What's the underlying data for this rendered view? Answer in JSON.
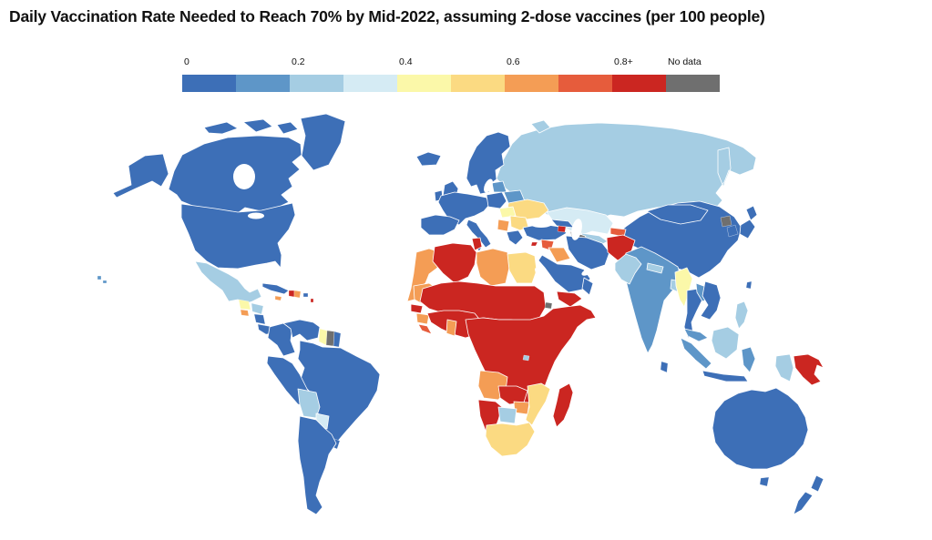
{
  "title": "Daily Vaccination Rate Needed to Reach 70% by Mid-2022, assuming 2-dose vaccines (per 100 people)",
  "legend": {
    "ticks": [
      {
        "label": "0",
        "cell": 0
      },
      {
        "label": "0.2",
        "cell": 2
      },
      {
        "label": "0.4",
        "cell": 4
      },
      {
        "label": "0.6",
        "cell": 6
      },
      {
        "label": "0.8+",
        "cell": 8
      },
      {
        "label": "No data",
        "cell": 9
      }
    ],
    "bins": [
      "0.0",
      "0.1",
      "0.2",
      "0.3",
      "0.4",
      "0.5",
      "0.6",
      "0.7",
      "0.8+",
      "no-data"
    ],
    "palette": {
      "0.0": "#3d6fb7",
      "0.1": "#5e96c8",
      "0.2": "#a5cde3",
      "0.3": "#d5ebf4",
      "0.4": "#fbf8a9",
      "0.5": "#fbda82",
      "0.6": "#f49d55",
      "0.7": "#e65c3c",
      "0.8+": "#cb2621",
      "no-data": "#6f6f6f"
    }
  },
  "map": {
    "ocean_color": "#ffffff",
    "border_color": "#ffffff",
    "regions": [
      {
        "id": "greenland",
        "name": "Greenland",
        "category": "0.0"
      },
      {
        "id": "canada",
        "name": "Canada",
        "category": "0.0"
      },
      {
        "id": "alaska",
        "name": "United States (Alaska)",
        "category": "0.0"
      },
      {
        "id": "usa",
        "name": "United States",
        "category": "0.0"
      },
      {
        "id": "hawaii",
        "name": "United States (Hawaii)",
        "category": "0.1"
      },
      {
        "id": "mexico",
        "name": "Mexico",
        "category": "0.2"
      },
      {
        "id": "guatemala",
        "name": "Guatemala",
        "category": "0.4"
      },
      {
        "id": "el-salvador",
        "name": "El Salvador",
        "category": "0.6"
      },
      {
        "id": "honduras",
        "name": "Honduras",
        "category": "0.2"
      },
      {
        "id": "nicaragua",
        "name": "Nicaragua",
        "category": "0.0"
      },
      {
        "id": "costa-rica-panama",
        "name": "Costa Rica & Panama",
        "category": "0.0"
      },
      {
        "id": "cuba",
        "name": "Cuba",
        "category": "0.0"
      },
      {
        "id": "jamaica",
        "name": "Jamaica",
        "category": "0.6"
      },
      {
        "id": "haiti",
        "name": "Haiti",
        "category": "0.8+"
      },
      {
        "id": "dominican-republic",
        "name": "Dominican Republic",
        "category": "0.6"
      },
      {
        "id": "puerto-rico",
        "name": "Puerto Rico",
        "category": "0.0"
      },
      {
        "id": "lesser-antilles",
        "name": "Lesser Antilles",
        "category": "0.8+"
      },
      {
        "id": "colombia",
        "name": "Colombia",
        "category": "0.0"
      },
      {
        "id": "venezuela",
        "name": "Venezuela",
        "category": "0.0"
      },
      {
        "id": "guyana",
        "name": "Guyana",
        "category": "0.4"
      },
      {
        "id": "suriname",
        "name": "Suriname",
        "category": "no-data"
      },
      {
        "id": "french-guiana",
        "name": "French Guiana",
        "category": "0.0"
      },
      {
        "id": "ecuador-peru",
        "name": "Ecuador & Peru",
        "category": "0.0"
      },
      {
        "id": "brazil",
        "name": "Brazil",
        "category": "0.0"
      },
      {
        "id": "bolivia",
        "name": "Bolivia",
        "category": "0.2"
      },
      {
        "id": "paraguay",
        "name": "Paraguay",
        "category": "0.3"
      },
      {
        "id": "argentina-chile",
        "name": "Argentina & Chile",
        "category": "0.0"
      },
      {
        "id": "uruguay",
        "name": "Uruguay",
        "category": "0.0"
      },
      {
        "id": "iceland",
        "name": "Iceland",
        "category": "0.0"
      },
      {
        "id": "united-kingdom",
        "name": "United Kingdom",
        "category": "0.0"
      },
      {
        "id": "ireland",
        "name": "Ireland",
        "category": "0.0"
      },
      {
        "id": "scandinavia",
        "name": "Norway, Sweden & Finland",
        "category": "0.0"
      },
      {
        "id": "western-europe",
        "name": "Western & Central Europe",
        "category": "0.0"
      },
      {
        "id": "iberia",
        "name": "Spain & Portugal",
        "category": "0.0"
      },
      {
        "id": "italy",
        "name": "Italy",
        "category": "0.0"
      },
      {
        "id": "poland",
        "name": "Poland",
        "category": "0.0"
      },
      {
        "id": "baltics",
        "name": "Baltic states",
        "category": "0.1"
      },
      {
        "id": "belarus",
        "name": "Belarus",
        "category": "0.1"
      },
      {
        "id": "ukraine",
        "name": "Ukraine",
        "category": "0.5"
      },
      {
        "id": "hungary-slovakia",
        "name": "Hungary & Slovakia",
        "category": "0.4"
      },
      {
        "id": "romania-bulgaria",
        "name": "Romania & Bulgaria",
        "category": "0.5"
      },
      {
        "id": "balkans",
        "name": "Western Balkans",
        "category": "0.6"
      },
      {
        "id": "greece",
        "name": "Greece",
        "category": "0.0"
      },
      {
        "id": "turkey",
        "name": "Turkey",
        "category": "0.0"
      },
      {
        "id": "cyprus",
        "name": "Cyprus",
        "category": "0.8+"
      },
      {
        "id": "russia",
        "name": "Russia",
        "category": "0.2"
      },
      {
        "id": "novaya-zemlya",
        "name": "Russia (Novaya Zemlya)",
        "category": "0.2"
      },
      {
        "id": "kazakhstan",
        "name": "Kazakhstan",
        "category": "0.3"
      },
      {
        "id": "uzbekistan",
        "name": "Uzbekistan",
        "category": "0.2"
      },
      {
        "id": "turkmenistan",
        "name": "Turkmenistan",
        "category": "no-data"
      },
      {
        "id": "kyrgyzstan",
        "name": "Kyrgyzstan",
        "category": "0.7"
      },
      {
        "id": "tajikistan",
        "name": "Tajikistan",
        "category": "0.1"
      },
      {
        "id": "caucasus",
        "name": "Georgia & Azerbaijan",
        "category": "0.0"
      },
      {
        "id": "armenia",
        "name": "Armenia",
        "category": "0.8+"
      },
      {
        "id": "syria",
        "name": "Syria",
        "category": "0.7"
      },
      {
        "id": "iraq",
        "name": "Iraq",
        "category": "0.6"
      },
      {
        "id": "iran",
        "name": "Iran",
        "category": "0.0"
      },
      {
        "id": "afghanistan",
        "name": "Afghanistan",
        "category": "0.8+"
      },
      {
        "id": "pakistan",
        "name": "Pakistan",
        "category": "0.2"
      },
      {
        "id": "saudi-arabia",
        "name": "Saudi Arabia, Jordan & Gulf states",
        "category": "0.0"
      },
      {
        "id": "yemen",
        "name": "Yemen",
        "category": "0.8+"
      },
      {
        "id": "oman",
        "name": "Oman",
        "category": "0.0"
      },
      {
        "id": "india",
        "name": "India",
        "category": "0.1"
      },
      {
        "id": "nepal",
        "name": "Nepal",
        "category": "0.2"
      },
      {
        "id": "bangladesh",
        "name": "Bangladesh",
        "category": "0.2"
      },
      {
        "id": "sri-lanka",
        "name": "Sri Lanka",
        "category": "0.0"
      },
      {
        "id": "myanmar",
        "name": "Myanmar",
        "category": "0.4"
      },
      {
        "id": "thailand",
        "name": "Thailand",
        "category": "0.0"
      },
      {
        "id": "laos",
        "name": "Laos",
        "category": "0.1"
      },
      {
        "id": "vietnam-cambodia",
        "name": "Vietnam & Cambodia",
        "category": "0.0"
      },
      {
        "id": "china",
        "name": "China",
        "category": "0.0"
      },
      {
        "id": "mongolia",
        "name": "Mongolia",
        "category": "0.0"
      },
      {
        "id": "north-korea",
        "name": "North Korea",
        "category": "no-data"
      },
      {
        "id": "south-korea",
        "name": "South Korea",
        "category": "0.0"
      },
      {
        "id": "japan",
        "name": "Japan",
        "category": "0.0"
      },
      {
        "id": "taiwan",
        "name": "Taiwan",
        "category": "0.0"
      },
      {
        "id": "philippines",
        "name": "Philippines",
        "category": "0.2"
      },
      {
        "id": "malaysia",
        "name": "Malaysia",
        "category": "0.1"
      },
      {
        "id": "sumatra",
        "name": "Indonesia (Sumatra)",
        "category": "0.1"
      },
      {
        "id": "borneo",
        "name": "Borneo (Kalimantan & E. Malaysia)",
        "category": "0.2"
      },
      {
        "id": "java",
        "name": "Indonesia (Java)",
        "category": "0.0"
      },
      {
        "id": "sulawesi",
        "name": "Indonesia (Sulawesi)",
        "category": "0.1"
      },
      {
        "id": "west-papua",
        "name": "Indonesia (West Papua)",
        "category": "0.2"
      },
      {
        "id": "papua-new-guinea",
        "name": "Papua New Guinea",
        "category": "0.8+"
      },
      {
        "id": "australia",
        "name": "Australia",
        "category": "0.0"
      },
      {
        "id": "tasmania",
        "name": "Australia (Tasmania)",
        "category": "0.0"
      },
      {
        "id": "new-zealand",
        "name": "New Zealand",
        "category": "0.0"
      },
      {
        "id": "morocco-western-sahara",
        "name": "Morocco & Western Sahara",
        "category": "0.6"
      },
      {
        "id": "algeria",
        "name": "Algeria",
        "category": "0.8+"
      },
      {
        "id": "tunisia",
        "name": "Tunisia",
        "category": "0.8+"
      },
      {
        "id": "libya",
        "name": "Libya",
        "category": "0.6"
      },
      {
        "id": "egypt",
        "name": "Egypt",
        "category": "0.5"
      },
      {
        "id": "mauritania",
        "name": "Mauritania",
        "category": "0.6"
      },
      {
        "id": "sahel-sudan",
        "name": "Sahel belt (Mali, Niger, Chad, Sudan)",
        "category": "0.8+"
      },
      {
        "id": "senegal",
        "name": "Senegal & Gambia",
        "category": "0.8+"
      },
      {
        "id": "guinea",
        "name": "Guinea",
        "category": "0.6"
      },
      {
        "id": "sierra-leone-liberia",
        "name": "Sierra Leone & Liberia",
        "category": "0.7"
      },
      {
        "id": "west-africa",
        "name": "West Africa (Côte d'Ivoire, Burkina, Nigeria…)",
        "category": "0.8+"
      },
      {
        "id": "ghana",
        "name": "Ghana",
        "category": "0.6"
      },
      {
        "id": "central-east-africa",
        "name": "Central & East Africa (DRC, Ethiopia, Kenya…)",
        "category": "0.8+"
      },
      {
        "id": "djibouti",
        "name": "Djibouti",
        "category": "no-data"
      },
      {
        "id": "rwanda",
        "name": "Rwanda",
        "category": "0.2"
      },
      {
        "id": "angola",
        "name": "Angola",
        "category": "0.6"
      },
      {
        "id": "zambia",
        "name": "Zambia",
        "category": "0.8+"
      },
      {
        "id": "zimbabwe",
        "name": "Zimbabwe",
        "category": "0.6"
      },
      {
        "id": "namibia",
        "name": "Namibia",
        "category": "0.8+"
      },
      {
        "id": "botswana",
        "name": "Botswana",
        "category": "0.2"
      },
      {
        "id": "mozambique",
        "name": "Mozambique",
        "category": "0.5"
      },
      {
        "id": "south-africa",
        "name": "South Africa",
        "category": "0.5"
      },
      {
        "id": "madagascar",
        "name": "Madagascar",
        "category": "0.8+"
      }
    ]
  }
}
